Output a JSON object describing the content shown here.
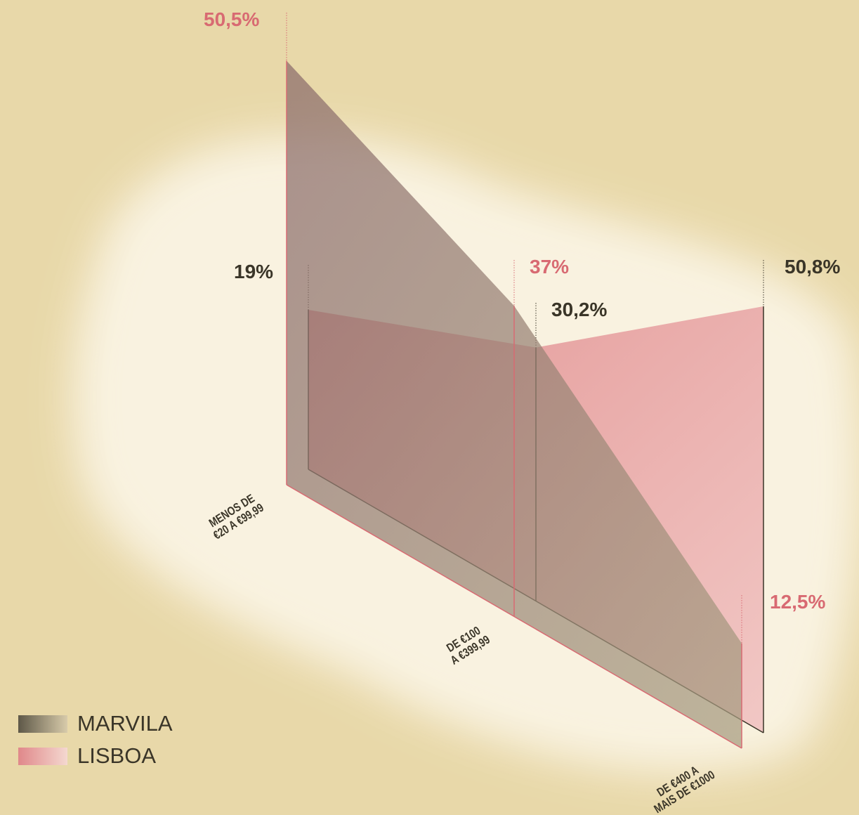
{
  "chart_data": {
    "type": "area3d",
    "categories": [
      "MENOS DE\n€20 A €99,99",
      "DE €100\nA €399,99",
      "DE €400 A\nMAIS DE €1000"
    ],
    "series": [
      {
        "name": "MARVILA",
        "color": "#e0888a",
        "values": [
          50.5,
          37,
          12.5
        ],
        "value_labels": [
          "50,5%",
          "37%",
          "12,5%"
        ]
      },
      {
        "name": "LISBOA",
        "color": "#5e5848",
        "values": [
          19,
          30.2,
          50.8
        ],
        "value_labels": [
          "19%",
          "30,2%",
          "50,8%"
        ]
      }
    ],
    "legend": "bottom-left"
  }
}
